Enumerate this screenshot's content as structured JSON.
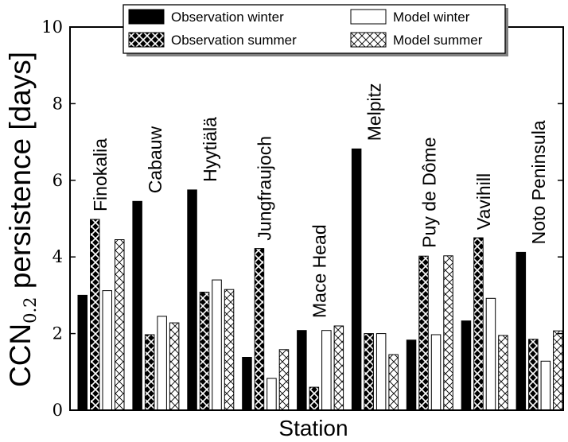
{
  "chart_data": {
    "type": "bar",
    "ylabel_main": "CCN",
    "ylabel_sub": "0.2",
    "ylabel_rest": " persistence [days]",
    "xlabel": "Station",
    "ylim": [
      0,
      10
    ],
    "yticks": [
      0,
      2,
      4,
      6,
      8,
      10
    ],
    "grid": false,
    "legend_position": "top",
    "categories": [
      "Finokalia",
      "Cabauw",
      "Hyytiälä",
      "Jungfraujoch",
      "Mace Head",
      "Melpitz",
      "Puy de Dôme",
      "Vavihill",
      "Noto Peninsula"
    ],
    "series": [
      {
        "name": "Observation winter",
        "style": "solid",
        "values": [
          3.0,
          5.45,
          5.75,
          1.38,
          2.08,
          6.82,
          1.83,
          2.33,
          4.12
        ]
      },
      {
        "name": "Observation summer",
        "style": "hatched-dark",
        "values": [
          4.98,
          1.97,
          3.08,
          4.22,
          0.6,
          2.0,
          4.02,
          4.5,
          1.85
        ]
      },
      {
        "name": "Model winter",
        "style": "open",
        "values": [
          3.12,
          2.45,
          3.4,
          0.83,
          2.08,
          2.0,
          1.97,
          2.92,
          1.28
        ]
      },
      {
        "name": "Model summer",
        "style": "hatched-light",
        "values": [
          4.45,
          2.28,
          3.15,
          1.58,
          2.2,
          1.45,
          4.03,
          1.95,
          2.07
        ]
      }
    ]
  }
}
